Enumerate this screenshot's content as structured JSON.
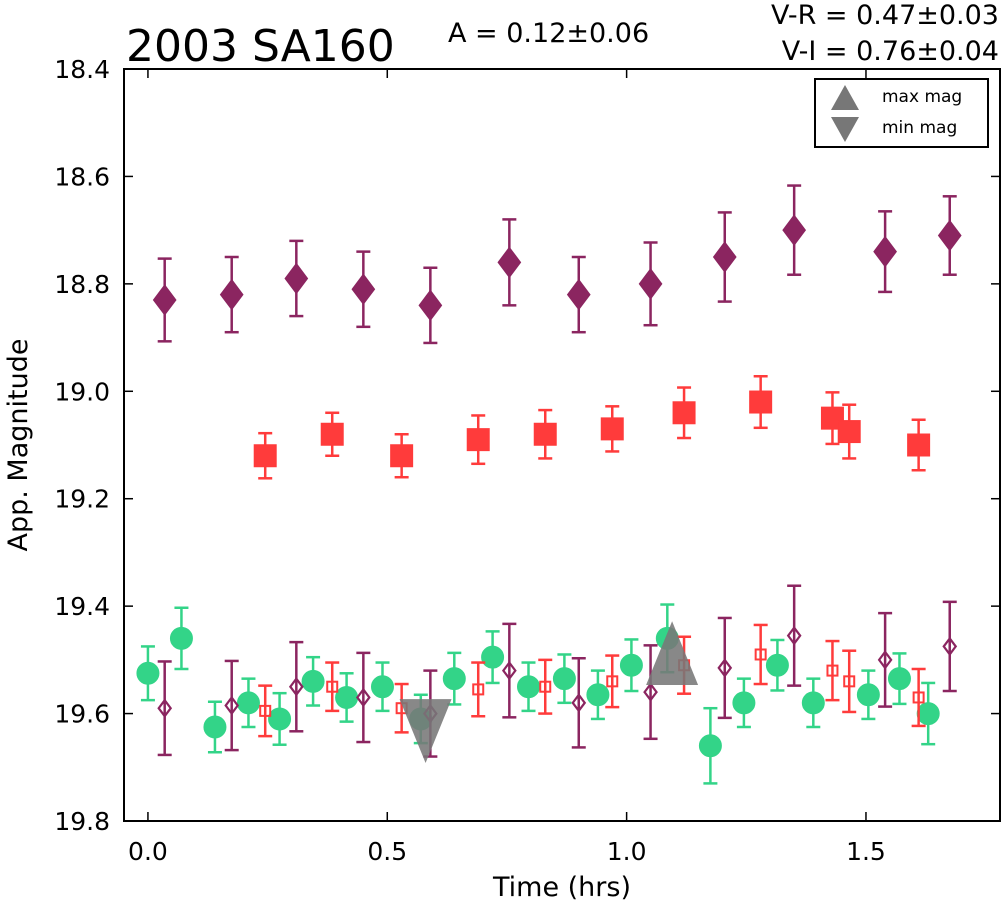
{
  "chart_data": {
    "type": "scatter",
    "title": "2003 SA160",
    "amplitude_text": "A  = 0.12±0.06",
    "color_lines": [
      "V-R = 0.47±0.03",
      "V-I  = 0.76±0.04"
    ],
    "xlabel": "Time (hrs)",
    "ylabel": "App. Magnitude",
    "xlim": [
      -0.05,
      1.78
    ],
    "ylim": [
      19.8,
      18.4
    ],
    "y_inverted": true,
    "grid": false,
    "legend_position": "top-right",
    "xticks": [
      {
        "value": 0.0,
        "label": "0.0"
      },
      {
        "value": 0.5,
        "label": "0.5"
      },
      {
        "value": 1.0,
        "label": "1.0"
      },
      {
        "value": 1.5,
        "label": "1.5"
      }
    ],
    "yticks": [
      {
        "value": 18.4,
        "label": "18.4"
      },
      {
        "value": 18.6,
        "label": "18.6"
      },
      {
        "value": 18.8,
        "label": "18.8"
      },
      {
        "value": 19.0,
        "label": "19.0"
      },
      {
        "value": 19.2,
        "label": "19.2"
      },
      {
        "value": 19.4,
        "label": "19.4"
      },
      {
        "value": 19.6,
        "label": "19.6"
      },
      {
        "value": 19.8,
        "label": "19.8"
      }
    ],
    "legend": [
      {
        "label": "max mag",
        "marker": "triangle-up"
      },
      {
        "label": "min mag",
        "marker": "triangle-down"
      }
    ],
    "colors": {
      "i_band": "#8b2560",
      "r_band": "#ff3b3b",
      "v_band": "#33d488",
      "marker_gray": "#777777"
    },
    "series": [
      {
        "color_key": "i_band",
        "marker": "diamond",
        "filled": true,
        "points": [
          {
            "x": 0.035,
            "y": 18.83,
            "err": 0.077
          },
          {
            "x": 0.175,
            "y": 18.82,
            "err": 0.07
          },
          {
            "x": 0.31,
            "y": 18.79,
            "err": 0.07
          },
          {
            "x": 0.45,
            "y": 18.81,
            "err": 0.07
          },
          {
            "x": 0.59,
            "y": 18.84,
            "err": 0.07
          },
          {
            "x": 0.755,
            "y": 18.76,
            "err": 0.08
          },
          {
            "x": 0.9,
            "y": 18.82,
            "err": 0.07
          },
          {
            "x": 1.05,
            "y": 18.8,
            "err": 0.077
          },
          {
            "x": 1.205,
            "y": 18.75,
            "err": 0.083
          },
          {
            "x": 1.35,
            "y": 18.7,
            "err": 0.083
          },
          {
            "x": 1.54,
            "y": 18.74,
            "err": 0.075
          },
          {
            "x": 1.675,
            "y": 18.71,
            "err": 0.073
          }
        ]
      },
      {
        "color_key": "r_band",
        "marker": "square",
        "filled": true,
        "points": [
          {
            "x": 0.245,
            "y": 19.12,
            "err": 0.042
          },
          {
            "x": 0.385,
            "y": 19.08,
            "err": 0.04
          },
          {
            "x": 0.53,
            "y": 19.12,
            "err": 0.04
          },
          {
            "x": 0.69,
            "y": 19.09,
            "err": 0.045
          },
          {
            "x": 0.83,
            "y": 19.08,
            "err": 0.045
          },
          {
            "x": 0.97,
            "y": 19.07,
            "err": 0.042
          },
          {
            "x": 1.12,
            "y": 19.04,
            "err": 0.047
          },
          {
            "x": 1.28,
            "y": 19.02,
            "err": 0.048
          },
          {
            "x": 1.43,
            "y": 19.05,
            "err": 0.048
          },
          {
            "x": 1.465,
            "y": 19.075,
            "err": 0.05
          },
          {
            "x": 1.61,
            "y": 19.1,
            "err": 0.047
          }
        ]
      },
      {
        "color_key": "v_band",
        "marker": "circle",
        "filled": true,
        "points": [
          {
            "x": 0.0,
            "y": 19.525,
            "err": 0.05
          },
          {
            "x": 0.07,
            "y": 19.46,
            "err": 0.057
          },
          {
            "x": 0.14,
            "y": 19.625,
            "err": 0.047
          },
          {
            "x": 0.21,
            "y": 19.58,
            "err": 0.045
          },
          {
            "x": 0.275,
            "y": 19.61,
            "err": 0.048
          },
          {
            "x": 0.345,
            "y": 19.54,
            "err": 0.045
          },
          {
            "x": 0.415,
            "y": 19.57,
            "err": 0.045
          },
          {
            "x": 0.49,
            "y": 19.55,
            "err": 0.045
          },
          {
            "x": 0.57,
            "y": 19.61,
            "err": 0.045
          },
          {
            "x": 0.64,
            "y": 19.535,
            "err": 0.048
          },
          {
            "x": 0.72,
            "y": 19.495,
            "err": 0.048
          },
          {
            "x": 0.795,
            "y": 19.55,
            "err": 0.045
          },
          {
            "x": 0.87,
            "y": 19.535,
            "err": 0.045
          },
          {
            "x": 0.94,
            "y": 19.565,
            "err": 0.045
          },
          {
            "x": 1.01,
            "y": 19.51,
            "err": 0.048
          },
          {
            "x": 1.085,
            "y": 19.46,
            "err": 0.063
          },
          {
            "x": 1.175,
            "y": 19.66,
            "err": 0.07
          },
          {
            "x": 1.245,
            "y": 19.58,
            "err": 0.045
          },
          {
            "x": 1.315,
            "y": 19.51,
            "err": 0.047
          },
          {
            "x": 1.39,
            "y": 19.58,
            "err": 0.045
          },
          {
            "x": 1.505,
            "y": 19.565,
            "err": 0.045
          },
          {
            "x": 1.57,
            "y": 19.535,
            "err": 0.047
          },
          {
            "x": 1.63,
            "y": 19.6,
            "err": 0.057
          }
        ]
      },
      {
        "color_key": "i_band",
        "marker": "diamond",
        "filled": false,
        "points": [
          {
            "x": 0.035,
            "y": 19.59,
            "err": 0.087
          },
          {
            "x": 0.175,
            "y": 19.585,
            "err": 0.083
          },
          {
            "x": 0.31,
            "y": 19.55,
            "err": 0.083
          },
          {
            "x": 0.45,
            "y": 19.57,
            "err": 0.083
          },
          {
            "x": 0.59,
            "y": 19.6,
            "err": 0.08
          },
          {
            "x": 0.755,
            "y": 19.52,
            "err": 0.087
          },
          {
            "x": 0.9,
            "y": 19.58,
            "err": 0.083
          },
          {
            "x": 1.05,
            "y": 19.56,
            "err": 0.087
          },
          {
            "x": 1.205,
            "y": 19.515,
            "err": 0.093
          },
          {
            "x": 1.35,
            "y": 19.455,
            "err": 0.093
          },
          {
            "x": 1.54,
            "y": 19.5,
            "err": 0.087
          },
          {
            "x": 1.675,
            "y": 19.475,
            "err": 0.083
          }
        ]
      },
      {
        "color_key": "r_band",
        "marker": "square",
        "filled": false,
        "points": [
          {
            "x": 0.245,
            "y": 19.595,
            "err": 0.047
          },
          {
            "x": 0.385,
            "y": 19.55,
            "err": 0.045
          },
          {
            "x": 0.53,
            "y": 19.59,
            "err": 0.045
          },
          {
            "x": 0.69,
            "y": 19.555,
            "err": 0.05
          },
          {
            "x": 0.83,
            "y": 19.55,
            "err": 0.05
          },
          {
            "x": 0.97,
            "y": 19.54,
            "err": 0.048
          },
          {
            "x": 1.12,
            "y": 19.51,
            "err": 0.053
          },
          {
            "x": 1.28,
            "y": 19.49,
            "err": 0.055
          },
          {
            "x": 1.43,
            "y": 19.52,
            "err": 0.055
          },
          {
            "x": 1.465,
            "y": 19.54,
            "err": 0.057
          },
          {
            "x": 1.61,
            "y": 19.57,
            "err": 0.053
          }
        ]
      }
    ],
    "extrema_markers": [
      {
        "label": "max mag",
        "marker": "triangle-up",
        "x": 1.095,
        "y": 19.51
      },
      {
        "label": "min mag",
        "marker": "triangle-down",
        "x": 0.58,
        "y": 19.61
      }
    ]
  }
}
